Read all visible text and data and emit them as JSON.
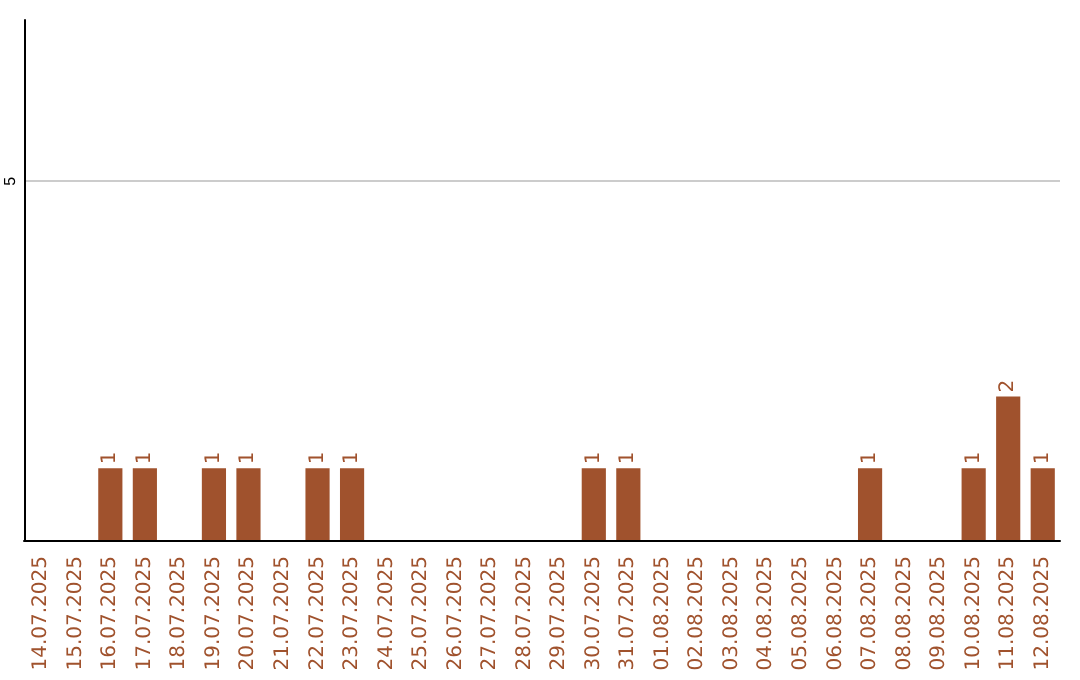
{
  "chart_data": {
    "type": "bar",
    "categories": [
      "14.07.2025",
      "15.07.2025",
      "16.07.2025",
      "17.07.2025",
      "18.07.2025",
      "19.07.2025",
      "20.07.2025",
      "21.07.2025",
      "22.07.2025",
      "23.07.2025",
      "24.07.2025",
      "25.07.2025",
      "26.07.2025",
      "27.07.2025",
      "28.07.2025",
      "29.07.2025",
      "30.07.2025",
      "31.07.2025",
      "01.08.2025",
      "02.08.2025",
      "03.08.2025",
      "04.08.2025",
      "05.08.2025",
      "06.08.2025",
      "07.08.2025",
      "08.08.2025",
      "09.08.2025",
      "10.08.2025",
      "11.08.2025",
      "12.08.2025"
    ],
    "values": [
      0,
      0,
      1,
      1,
      0,
      1,
      1,
      0,
      1,
      1,
      0,
      0,
      0,
      0,
      0,
      0,
      1,
      1,
      0,
      0,
      0,
      0,
      0,
      0,
      1,
      0,
      0,
      1,
      2,
      1
    ],
    "color": "#a0522d",
    "value_labels": [
      null,
      null,
      "1",
      "1",
      null,
      "1",
      "1",
      null,
      "1",
      "1",
      null,
      null,
      null,
      null,
      null,
      null,
      "1",
      "1",
      null,
      null,
      null,
      null,
      null,
      null,
      "1",
      null,
      null,
      "1",
      "2",
      "1"
    ],
    "ylim": [
      0,
      7.25
    ],
    "yticks": [
      5
    ],
    "grid": "y"
  }
}
